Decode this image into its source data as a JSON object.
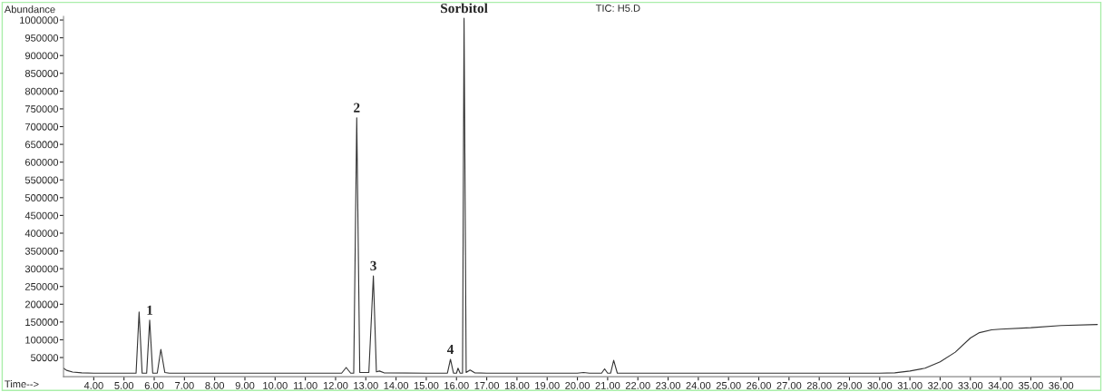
{
  "chart_data": {
    "type": "line",
    "xlabel": "Time-->",
    "ylabel": "Abundance",
    "x": [
      3.0,
      3.1,
      3.3,
      3.6,
      4.0,
      5.0,
      5.4,
      5.5,
      5.6,
      5.75,
      5.85,
      5.95,
      6.1,
      6.22,
      6.35,
      6.5,
      7.0,
      9.0,
      11.0,
      12.2,
      12.35,
      12.5,
      12.6,
      12.7,
      12.8,
      13.1,
      13.25,
      13.35,
      13.45,
      13.6,
      15.0,
      15.7,
      15.8,
      15.9,
      16.0,
      16.05,
      16.12,
      16.2,
      16.25,
      16.32,
      16.45,
      16.6,
      17.0,
      20.0,
      20.2,
      20.4,
      20.8,
      20.9,
      21.0,
      21.1,
      21.2,
      21.32,
      22.0,
      25.0,
      28.0,
      30.0,
      30.5,
      31.0,
      31.5,
      32.0,
      32.5,
      33.0,
      33.3,
      33.7,
      34.0,
      35.0,
      36.0,
      37.2
    ],
    "series": [
      {
        "color": "#333333",
        "values": [
          20000,
          14000,
          9000,
          7000,
          6000,
          6000,
          6000,
          178000,
          6000,
          6000,
          155000,
          6000,
          6000,
          73000,
          8000,
          6000,
          6000,
          6000,
          6000,
          6000,
          22000,
          6000,
          6000,
          725000,
          8000,
          8000,
          280000,
          10000,
          12000,
          7000,
          6000,
          6000,
          45000,
          6000,
          6000,
          20000,
          6000,
          6000,
          1005000,
          8000,
          15000,
          7000,
          6000,
          6000,
          8000,
          6000,
          6000,
          18000,
          6000,
          6000,
          42000,
          6000,
          6000,
          6000,
          6000,
          6000,
          7000,
          12000,
          20000,
          38000,
          65000,
          105000,
          120000,
          128000,
          130000,
          134000,
          140000,
          143000
        ]
      }
    ],
    "xlim": [
      3.0,
      37.3
    ],
    "ylim": [
      -4000,
      1010000
    ],
    "xticks": [
      {
        "value": 4,
        "label": "4.00"
      },
      {
        "value": 5,
        "label": "5.00"
      },
      {
        "value": 6,
        "label": "6.00"
      },
      {
        "value": 7,
        "label": "7.00"
      },
      {
        "value": 8,
        "label": "8.00"
      },
      {
        "value": 9,
        "label": "9.00"
      },
      {
        "value": 10,
        "label": "10.00"
      },
      {
        "value": 11,
        "label": "11.00"
      },
      {
        "value": 12,
        "label": "12.00"
      },
      {
        "value": 13,
        "label": "13.00"
      },
      {
        "value": 14,
        "label": "14.00"
      },
      {
        "value": 15,
        "label": "15.00"
      },
      {
        "value": 16,
        "label": "16.00"
      },
      {
        "value": 17,
        "label": "17.00"
      },
      {
        "value": 18,
        "label": "18.00"
      },
      {
        "value": 19,
        "label": "19.00"
      },
      {
        "value": 20,
        "label": "20.00"
      },
      {
        "value": 21,
        "label": "21.00"
      },
      {
        "value": 22,
        "label": "22.00"
      },
      {
        "value": 23,
        "label": "23.00"
      },
      {
        "value": 24,
        "label": "24.00"
      },
      {
        "value": 25,
        "label": "25.00"
      },
      {
        "value": 26,
        "label": "26.00"
      },
      {
        "value": 27,
        "label": "27.00"
      },
      {
        "value": 28,
        "label": "28.00"
      },
      {
        "value": 29,
        "label": "29.00"
      },
      {
        "value": 30,
        "label": "30.00"
      },
      {
        "value": 31,
        "label": "31.00"
      },
      {
        "value": 32,
        "label": "32.00"
      },
      {
        "value": 33,
        "label": "33.00"
      },
      {
        "value": 34,
        "label": "34.00"
      },
      {
        "value": 35,
        "label": "35.00"
      },
      {
        "value": 36,
        "label": "36.00"
      }
    ],
    "yticks": [
      50000,
      100000,
      150000,
      200000,
      250000,
      300000,
      350000,
      400000,
      450000,
      500000,
      550000,
      600000,
      650000,
      700000,
      750000,
      800000,
      850000,
      900000,
      950000,
      1000000
    ],
    "annotations": [
      {
        "text": "1",
        "x": 5.85,
        "y": 155000
      },
      {
        "text": "2",
        "x": 12.7,
        "y": 725000
      },
      {
        "text": "3",
        "x": 13.25,
        "y": 280000
      },
      {
        "text": "4",
        "x": 15.8,
        "y": 45000
      },
      {
        "text": "Sorbitol",
        "x": 16.25,
        "y": 1005000
      },
      "TIC: H5.D"
    ],
    "grid": false,
    "legend": false
  }
}
